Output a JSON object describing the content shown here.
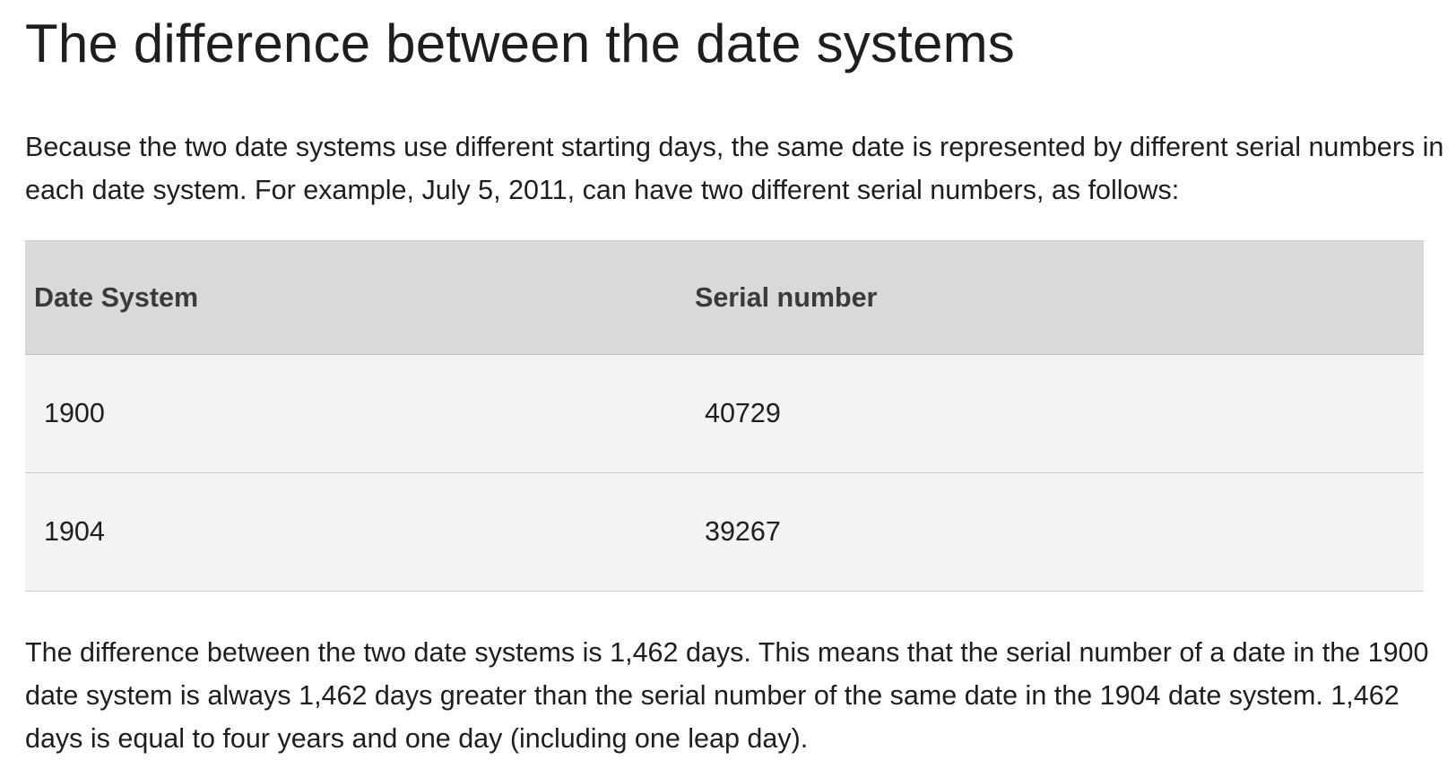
{
  "heading": "The difference between the date systems",
  "intro": "Because the two date systems use different starting days, the same date is represented by different serial numbers in each date system. For example, July 5, 2011, can have two different serial numbers, as follows:",
  "table": {
    "headers": [
      "Date System",
      "Serial number"
    ],
    "rows": [
      [
        "1900",
        "40729"
      ],
      [
        "1904",
        "39267"
      ]
    ]
  },
  "outro": "The difference between the two date systems is 1,462 days. This means that the serial number of a date in the 1900 date system is always 1,462 days greater than the serial number of the same date in the 1904 date system. 1,462 days is equal to four years and one day (including one leap day)."
}
